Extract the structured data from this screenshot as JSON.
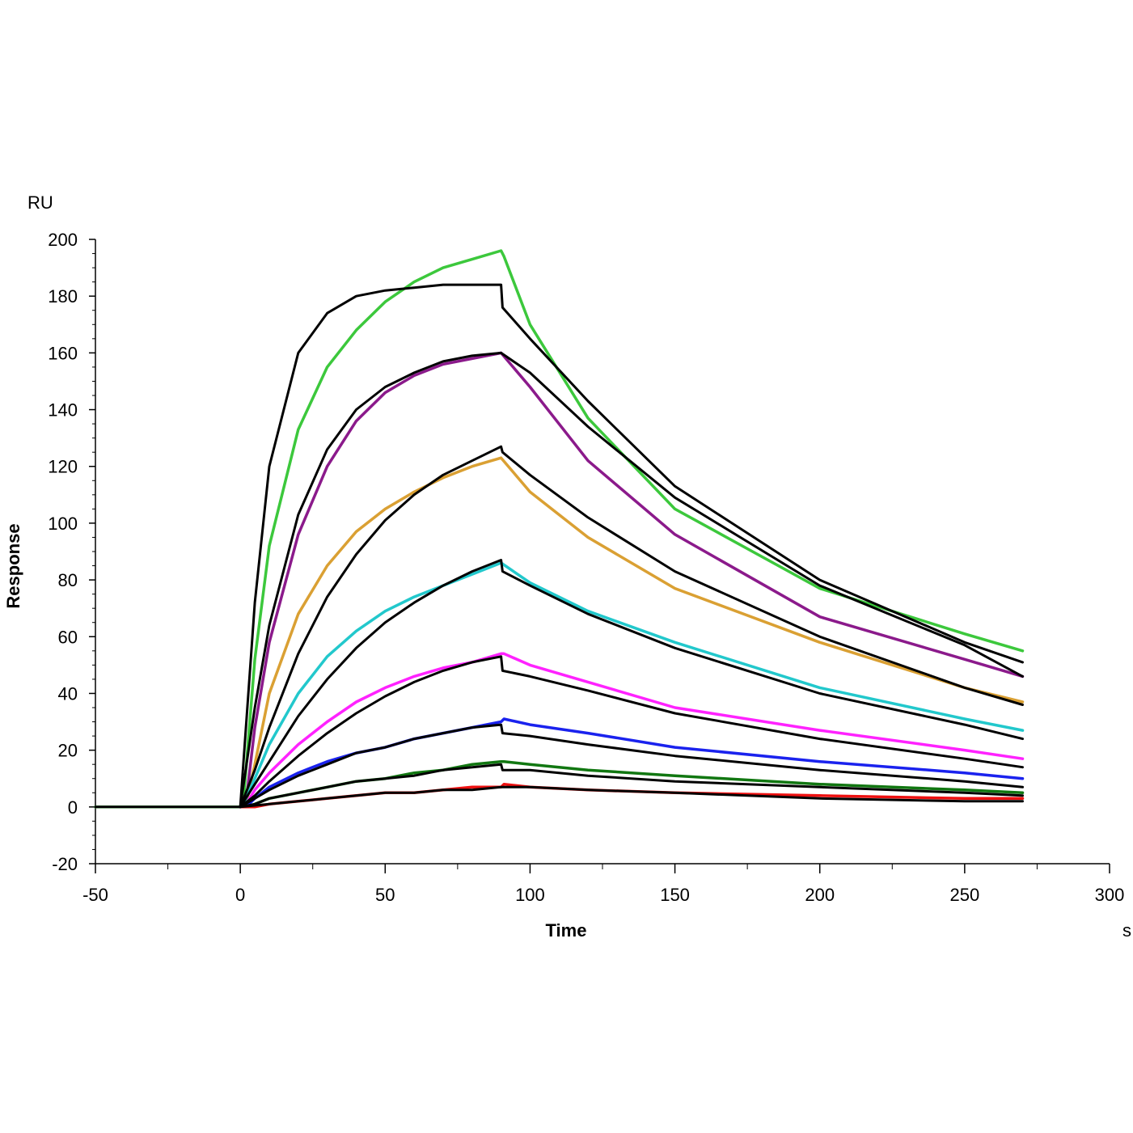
{
  "chart_data": {
    "type": "line",
    "title": "",
    "xlabel": "Time",
    "ylabel": "Response",
    "x_unit": "s",
    "y_unit": "RU",
    "xlim": [
      -50,
      300
    ],
    "ylim": [
      -20,
      200
    ],
    "x_ticks": [
      -50,
      0,
      50,
      100,
      150,
      200,
      250,
      300
    ],
    "y_ticks": [
      -20,
      0,
      20,
      40,
      60,
      80,
      100,
      120,
      140,
      160,
      180,
      200
    ],
    "grid": false,
    "legend": "none",
    "colors": {
      "fit": "#000000",
      "measured": [
        "#3cc83c",
        "#8b1a8b",
        "#daa033",
        "#22c8cc",
        "#ff22ff",
        "#1a22ee",
        "#117711",
        "#ee1111"
      ]
    },
    "series": [
      {
        "kind": "measured",
        "color": "#3cc83c",
        "points": [
          [
            -50,
            0
          ],
          [
            0,
            0
          ],
          [
            1,
            1
          ],
          [
            5,
            52
          ],
          [
            10,
            92
          ],
          [
            20,
            133
          ],
          [
            30,
            155
          ],
          [
            40,
            168
          ],
          [
            50,
            178
          ],
          [
            60,
            185
          ],
          [
            70,
            190
          ],
          [
            80,
            193
          ],
          [
            90,
            196
          ],
          [
            91,
            194
          ],
          [
            100,
            170
          ],
          [
            120,
            137
          ],
          [
            150,
            105
          ],
          [
            200,
            77
          ],
          [
            250,
            61
          ],
          [
            270,
            55
          ]
        ]
      },
      {
        "kind": "measured",
        "color": "#8b1a8b",
        "points": [
          [
            0,
            0
          ],
          [
            2,
            2
          ],
          [
            5,
            28
          ],
          [
            10,
            58
          ],
          [
            20,
            96
          ],
          [
            30,
            120
          ],
          [
            40,
            136
          ],
          [
            50,
            146
          ],
          [
            60,
            152
          ],
          [
            70,
            156
          ],
          [
            80,
            158
          ],
          [
            90,
            160
          ],
          [
            100,
            148
          ],
          [
            120,
            122
          ],
          [
            150,
            96
          ],
          [
            200,
            67
          ],
          [
            250,
            52
          ],
          [
            270,
            46
          ]
        ]
      },
      {
        "kind": "measured",
        "color": "#daa033",
        "points": [
          [
            0,
            0
          ],
          [
            2,
            1
          ],
          [
            5,
            15
          ],
          [
            10,
            40
          ],
          [
            20,
            68
          ],
          [
            30,
            85
          ],
          [
            40,
            97
          ],
          [
            50,
            105
          ],
          [
            60,
            111
          ],
          [
            70,
            116
          ],
          [
            80,
            120
          ],
          [
            90,
            123
          ],
          [
            100,
            111
          ],
          [
            120,
            95
          ],
          [
            150,
            77
          ],
          [
            200,
            58
          ],
          [
            250,
            42
          ],
          [
            270,
            37
          ]
        ]
      },
      {
        "kind": "measured",
        "color": "#22c8cc",
        "points": [
          [
            0,
            0
          ],
          [
            2,
            3
          ],
          [
            5,
            10
          ],
          [
            10,
            22
          ],
          [
            20,
            40
          ],
          [
            30,
            53
          ],
          [
            40,
            62
          ],
          [
            50,
            69
          ],
          [
            60,
            74
          ],
          [
            70,
            78
          ],
          [
            80,
            82
          ],
          [
            90,
            86
          ],
          [
            100,
            79
          ],
          [
            120,
            69
          ],
          [
            150,
            58
          ],
          [
            200,
            42
          ],
          [
            250,
            31
          ],
          [
            270,
            27
          ]
        ]
      },
      {
        "kind": "measured",
        "color": "#ff22ff",
        "points": [
          [
            0,
            0
          ],
          [
            2,
            1
          ],
          [
            5,
            6
          ],
          [
            10,
            12
          ],
          [
            20,
            22
          ],
          [
            30,
            30
          ],
          [
            40,
            37
          ],
          [
            50,
            42
          ],
          [
            60,
            46
          ],
          [
            70,
            49
          ],
          [
            80,
            51
          ],
          [
            90,
            54
          ],
          [
            91,
            54
          ],
          [
            100,
            50
          ],
          [
            120,
            44
          ],
          [
            150,
            35
          ],
          [
            200,
            27
          ],
          [
            250,
            20
          ],
          [
            270,
            17
          ]
        ]
      },
      {
        "kind": "measured",
        "color": "#1a22ee",
        "points": [
          [
            0,
            0
          ],
          [
            2,
            0
          ],
          [
            5,
            3
          ],
          [
            10,
            7
          ],
          [
            20,
            12
          ],
          [
            30,
            16
          ],
          [
            40,
            19
          ],
          [
            50,
            21
          ],
          [
            60,
            24
          ],
          [
            70,
            26
          ],
          [
            80,
            28
          ],
          [
            90,
            30
          ],
          [
            91,
            31
          ],
          [
            100,
            29
          ],
          [
            120,
            26
          ],
          [
            150,
            21
          ],
          [
            200,
            16
          ],
          [
            250,
            12
          ],
          [
            270,
            10
          ]
        ]
      },
      {
        "kind": "measured",
        "color": "#117711",
        "points": [
          [
            0,
            0
          ],
          [
            2,
            0
          ],
          [
            5,
            1
          ],
          [
            10,
            3
          ],
          [
            20,
            5
          ],
          [
            30,
            7
          ],
          [
            40,
            9
          ],
          [
            50,
            10
          ],
          [
            60,
            12
          ],
          [
            70,
            13
          ],
          [
            80,
            15
          ],
          [
            90,
            16
          ],
          [
            91,
            16
          ],
          [
            100,
            15
          ],
          [
            120,
            13
          ],
          [
            150,
            11
          ],
          [
            200,
            8
          ],
          [
            250,
            6
          ],
          [
            270,
            5
          ]
        ]
      },
      {
        "kind": "measured",
        "color": "#ee1111",
        "points": [
          [
            0,
            0
          ],
          [
            5,
            0
          ],
          [
            10,
            1
          ],
          [
            20,
            2
          ],
          [
            30,
            3
          ],
          [
            40,
            4
          ],
          [
            50,
            5
          ],
          [
            60,
            5
          ],
          [
            70,
            6
          ],
          [
            80,
            7
          ],
          [
            90,
            7
          ],
          [
            91,
            8
          ],
          [
            100,
            7
          ],
          [
            120,
            6
          ],
          [
            150,
            5
          ],
          [
            200,
            4
          ],
          [
            250,
            3
          ],
          [
            270,
            3
          ]
        ]
      },
      {
        "kind": "fit",
        "color": "#000000",
        "points": [
          [
            -50,
            0
          ],
          [
            0,
            0
          ],
          [
            5,
            72
          ],
          [
            10,
            120
          ],
          [
            20,
            160
          ],
          [
            30,
            174
          ],
          [
            40,
            180
          ],
          [
            50,
            182
          ],
          [
            60,
            183
          ],
          [
            70,
            184
          ],
          [
            80,
            184
          ],
          [
            90,
            184
          ],
          [
            90.5,
            176
          ],
          [
            100,
            165
          ],
          [
            120,
            143
          ],
          [
            150,
            113
          ],
          [
            200,
            80
          ],
          [
            250,
            58
          ],
          [
            270,
            51
          ]
        ]
      },
      {
        "kind": "fit",
        "color": "#000000",
        "points": [
          [
            0,
            0
          ],
          [
            5,
            35
          ],
          [
            10,
            64
          ],
          [
            20,
            103
          ],
          [
            30,
            126
          ],
          [
            40,
            140
          ],
          [
            50,
            148
          ],
          [
            60,
            153
          ],
          [
            70,
            157
          ],
          [
            80,
            159
          ],
          [
            90,
            160
          ],
          [
            100,
            153
          ],
          [
            120,
            134
          ],
          [
            150,
            109
          ],
          [
            200,
            78
          ],
          [
            250,
            57
          ],
          [
            270,
            46
          ]
        ]
      },
      {
        "kind": "fit",
        "color": "#000000",
        "points": [
          [
            0,
            0
          ],
          [
            5,
            13
          ],
          [
            10,
            28
          ],
          [
            20,
            54
          ],
          [
            30,
            74
          ],
          [
            40,
            89
          ],
          [
            50,
            101
          ],
          [
            60,
            110
          ],
          [
            70,
            117
          ],
          [
            80,
            122
          ],
          [
            90,
            127
          ],
          [
            90.5,
            125
          ],
          [
            100,
            117
          ],
          [
            120,
            102
          ],
          [
            150,
            83
          ],
          [
            200,
            60
          ],
          [
            250,
            42
          ],
          [
            270,
            36
          ]
        ]
      },
      {
        "kind": "fit",
        "color": "#000000",
        "points": [
          [
            0,
            0
          ],
          [
            5,
            8
          ],
          [
            10,
            16
          ],
          [
            20,
            32
          ],
          [
            30,
            45
          ],
          [
            40,
            56
          ],
          [
            50,
            65
          ],
          [
            60,
            72
          ],
          [
            70,
            78
          ],
          [
            80,
            83
          ],
          [
            90,
            87
          ],
          [
            90.5,
            83
          ],
          [
            100,
            78
          ],
          [
            120,
            68
          ],
          [
            150,
            56
          ],
          [
            200,
            40
          ],
          [
            250,
            29
          ],
          [
            270,
            24
          ]
        ]
      },
      {
        "kind": "fit",
        "color": "#000000",
        "points": [
          [
            0,
            0
          ],
          [
            5,
            4
          ],
          [
            10,
            9
          ],
          [
            20,
            18
          ],
          [
            30,
            26
          ],
          [
            40,
            33
          ],
          [
            50,
            39
          ],
          [
            60,
            44
          ],
          [
            70,
            48
          ],
          [
            80,
            51
          ],
          [
            90,
            53
          ],
          [
            90.5,
            48
          ],
          [
            100,
            46
          ],
          [
            120,
            41
          ],
          [
            150,
            33
          ],
          [
            200,
            24
          ],
          [
            250,
            17
          ],
          [
            270,
            14
          ]
        ]
      },
      {
        "kind": "fit",
        "color": "#000000",
        "points": [
          [
            0,
            0
          ],
          [
            5,
            3
          ],
          [
            10,
            6
          ],
          [
            20,
            11
          ],
          [
            30,
            15
          ],
          [
            40,
            19
          ],
          [
            50,
            21
          ],
          [
            60,
            24
          ],
          [
            70,
            26
          ],
          [
            80,
            28
          ],
          [
            90,
            29
          ],
          [
            90.5,
            26
          ],
          [
            100,
            25
          ],
          [
            120,
            22
          ],
          [
            150,
            18
          ],
          [
            200,
            13
          ],
          [
            250,
            9
          ],
          [
            270,
            7
          ]
        ]
      },
      {
        "kind": "fit",
        "color": "#000000",
        "points": [
          [
            0,
            0
          ],
          [
            5,
            1
          ],
          [
            10,
            3
          ],
          [
            20,
            5
          ],
          [
            30,
            7
          ],
          [
            40,
            9
          ],
          [
            50,
            10
          ],
          [
            60,
            11
          ],
          [
            70,
            13
          ],
          [
            80,
            14
          ],
          [
            90,
            15
          ],
          [
            90.5,
            13
          ],
          [
            100,
            13
          ],
          [
            120,
            11
          ],
          [
            150,
            9
          ],
          [
            200,
            7
          ],
          [
            250,
            5
          ],
          [
            270,
            4
          ]
        ]
      },
      {
        "kind": "fit",
        "color": "#000000",
        "points": [
          [
            0,
            0
          ],
          [
            10,
            1
          ],
          [
            20,
            2
          ],
          [
            30,
            3
          ],
          [
            40,
            4
          ],
          [
            50,
            5
          ],
          [
            60,
            5
          ],
          [
            70,
            6
          ],
          [
            80,
            6
          ],
          [
            90,
            7
          ],
          [
            100,
            7
          ],
          [
            120,
            6
          ],
          [
            150,
            5
          ],
          [
            200,
            3
          ],
          [
            250,
            2
          ],
          [
            270,
            2
          ]
        ]
      }
    ]
  }
}
